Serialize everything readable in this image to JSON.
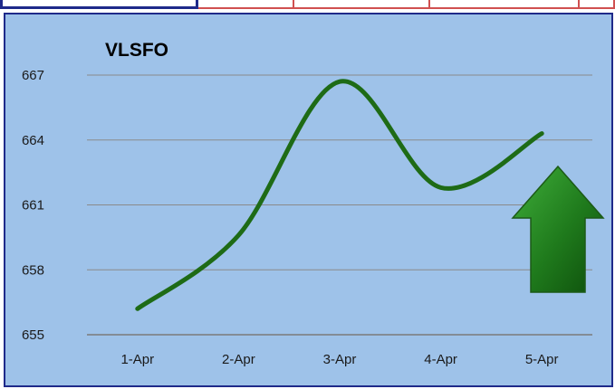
{
  "chart_data": {
    "type": "line",
    "title": "VLSFO",
    "categories": [
      "1-Apr",
      "2-Apr",
      "3-Apr",
      "4-Apr",
      "5-Apr"
    ],
    "series": [
      {
        "values": [
          656.2,
          659.6,
          666.7,
          661.8,
          664.3
        ]
      }
    ],
    "ylim": [
      655,
      667
    ],
    "yticks": [
      "655",
      "658",
      "661",
      "664",
      "667"
    ],
    "grid": true,
    "line_color": "#1e6b16",
    "background_color": "#9ec2e9",
    "gridline_color": "#8a8a8a",
    "annotation": "up-arrow-icon"
  }
}
